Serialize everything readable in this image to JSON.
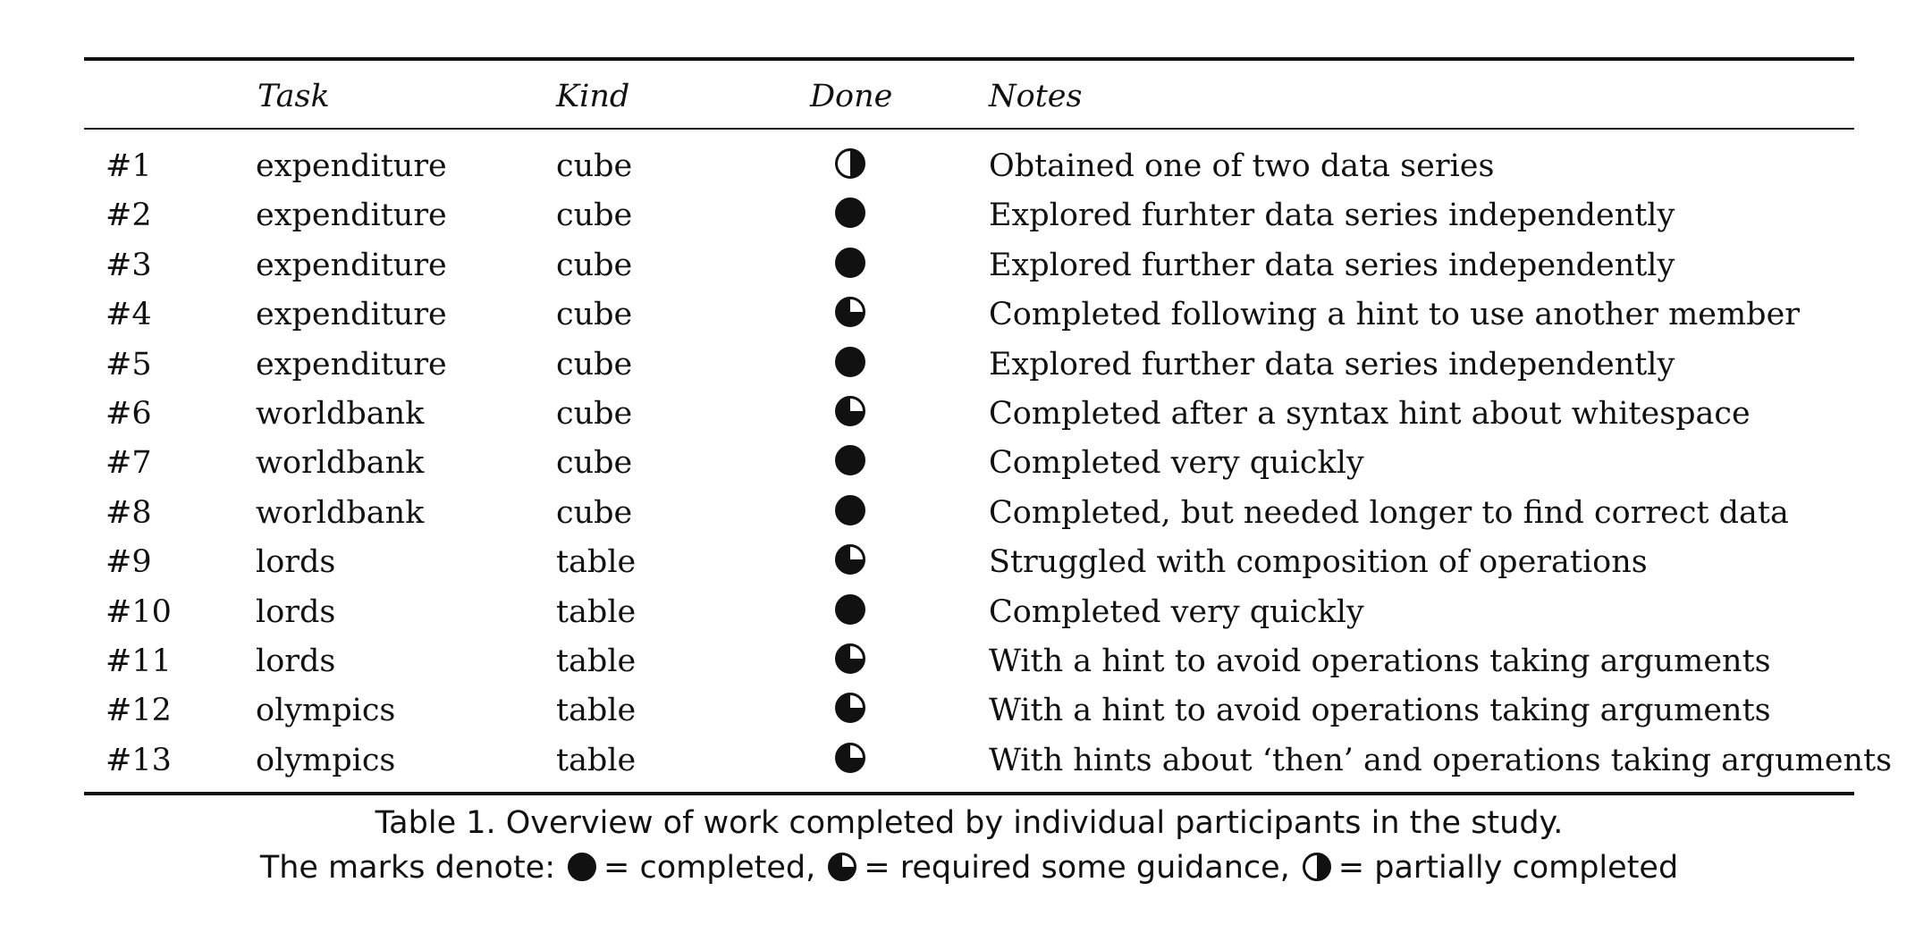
{
  "table": {
    "headers": {
      "id": "",
      "task": "Task",
      "kind": "Kind",
      "done": "Done",
      "notes": "Notes"
    },
    "rows": [
      {
        "id": "#1",
        "task": "expenditure",
        "kind": "cube",
        "done": "partial",
        "notes": "Obtained one of two data series"
      },
      {
        "id": "#2",
        "task": "expenditure",
        "kind": "cube",
        "done": "complete",
        "notes": "Explored furhter data series independently"
      },
      {
        "id": "#3",
        "task": "expenditure",
        "kind": "cube",
        "done": "complete",
        "notes": "Explored further data series independently"
      },
      {
        "id": "#4",
        "task": "expenditure",
        "kind": "cube",
        "done": "guidance",
        "notes": "Completed following a hint to use another member"
      },
      {
        "id": "#5",
        "task": "expenditure",
        "kind": "cube",
        "done": "complete",
        "notes": "Explored further data series independently"
      },
      {
        "id": "#6",
        "task": "worldbank",
        "kind": "cube",
        "done": "guidance",
        "notes": "Completed after a syntax hint about whitespace"
      },
      {
        "id": "#7",
        "task": "worldbank",
        "kind": "cube",
        "done": "complete",
        "notes": "Completed very quickly"
      },
      {
        "id": "#8",
        "task": "worldbank",
        "kind": "cube",
        "done": "complete",
        "notes": "Completed, but needed longer to find correct data"
      },
      {
        "id": "#9",
        "task": "lords",
        "kind": "table",
        "done": "guidance",
        "notes": "Struggled with composition of operations"
      },
      {
        "id": "#10",
        "task": "lords",
        "kind": "table",
        "done": "complete",
        "notes": "Completed very quickly"
      },
      {
        "id": "#11",
        "task": "lords",
        "kind": "table",
        "done": "guidance",
        "notes": "With a hint to avoid operations taking arguments"
      },
      {
        "id": "#12",
        "task": "olympics",
        "kind": "table",
        "done": "guidance",
        "notes": "With a hint to avoid operations taking arguments"
      },
      {
        "id": "#13",
        "task": "olympics",
        "kind": "table",
        "done": "guidance",
        "notes": "With hints about ‘then’ and operations taking arguments"
      }
    ]
  },
  "caption": {
    "line1": "Table 1.  Overview of work completed by individual participants in the study.",
    "line2_prefix": "The marks denote:",
    "legend": [
      {
        "mark": "complete",
        "text": "= completed,"
      },
      {
        "mark": "guidance",
        "text": "= required some guidance,"
      },
      {
        "mark": "partial",
        "text": "= partially completed"
      }
    ]
  }
}
